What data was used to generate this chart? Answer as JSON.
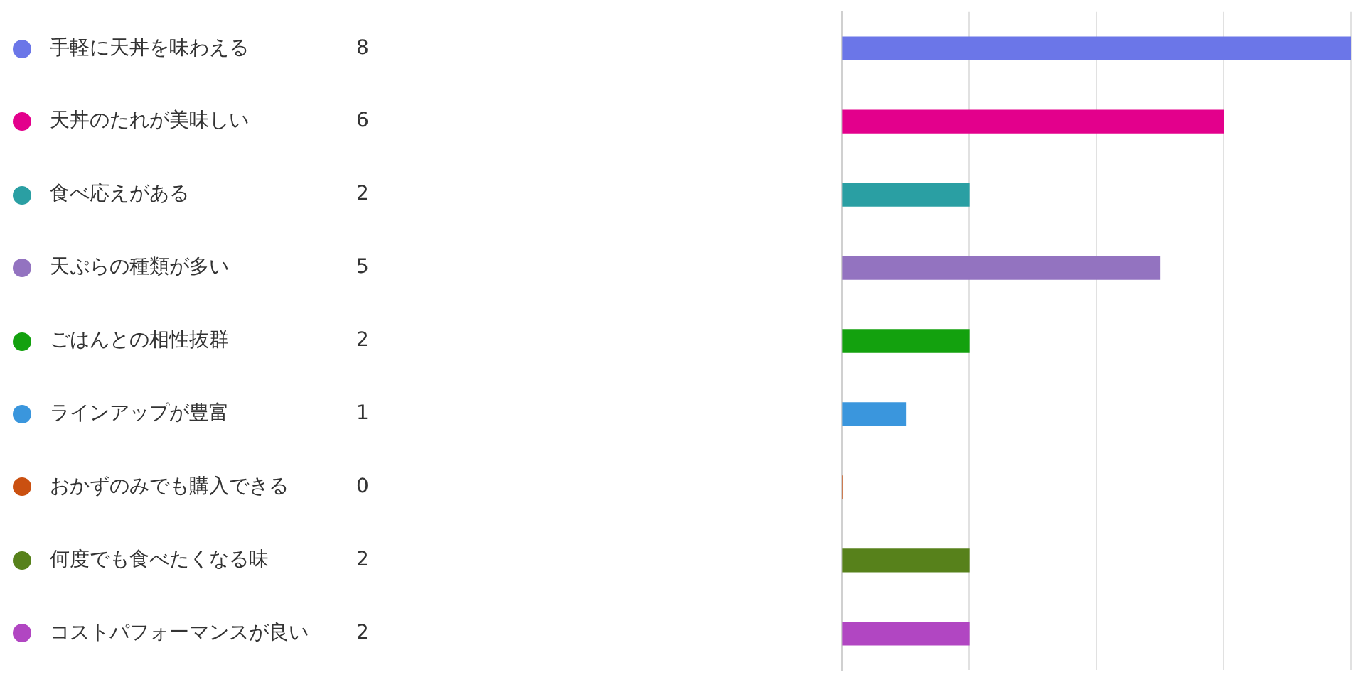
{
  "chart_data": {
    "type": "bar",
    "orientation": "horizontal",
    "categories": [
      "手軽に天丼を味わえる",
      "天丼のたれが美味しい",
      "食べ応えがある",
      "天ぷらの種類が多い",
      "ごはんとの相性抜群",
      "ラインアップが豊富",
      "おかずのみでも購入できる",
      "何度でも食べたくなる味",
      "コストパフォーマンスが良い"
    ],
    "values": [
      8,
      6,
      2,
      5,
      2,
      1,
      0,
      2,
      2
    ],
    "colors": [
      "#6b76e8",
      "#e3008c",
      "#2a9fa3",
      "#9373c0",
      "#13a10e",
      "#3a96dd",
      "#ca5010",
      "#57811b",
      "#b146c2"
    ],
    "xlim": [
      0,
      8
    ],
    "xticks": [
      {
        "value": 0,
        "label": null
      },
      {
        "value": 2,
        "label": null
      },
      {
        "value": 4,
        "label": null
      },
      {
        "value": 6,
        "label": null
      },
      {
        "value": 8,
        "label": null
      }
    ],
    "grid": "x",
    "tick_labels": "y",
    "data_labels": true,
    "legend": false
  }
}
